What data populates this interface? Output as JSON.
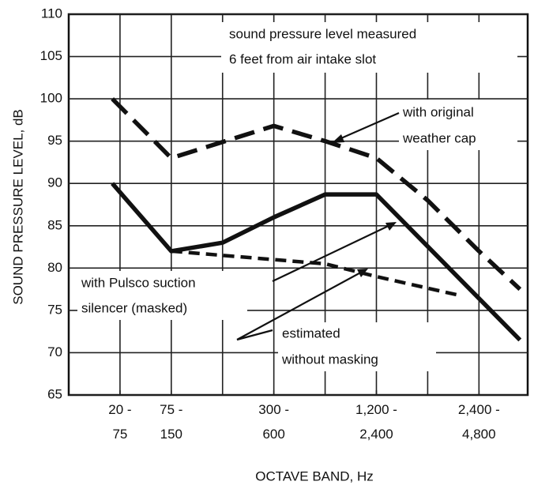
{
  "chart_data": {
    "type": "line",
    "xlabel": "OCTAVE BAND, Hz",
    "ylabel": "SOUND PRESSURE LEVEL, dB",
    "xlim": [
      0,
      8.95
    ],
    "ylim": [
      65,
      110
    ],
    "xticks": [
      {
        "value": 1,
        "label": "20 - 75"
      },
      {
        "value": 2,
        "label": "75 - 150"
      },
      {
        "value": 4,
        "label": "300 - 600"
      },
      {
        "value": 6,
        "label": "1,200 - 2,400"
      },
      {
        "value": 8,
        "label": "2,400 - 4,800"
      }
    ],
    "yticks": [
      65,
      70,
      75,
      80,
      85,
      90,
      95,
      100,
      105,
      110
    ],
    "grid": true,
    "series": [
      {
        "name": "with original weather cap",
        "color": "#111111",
        "style": "dashed",
        "x": [
          0.85,
          2,
          4,
          5,
          6,
          7,
          8,
          8.8
        ],
        "values": [
          100,
          93,
          96.8,
          95,
          93,
          88,
          82,
          77.5
        ]
      },
      {
        "name": "with Pulsco suction silencer (masked)",
        "color": "#111111",
        "style": "solid",
        "x": [
          0.85,
          2,
          3,
          4,
          5,
          6,
          8.8
        ],
        "values": [
          90,
          82,
          83,
          86,
          88.7,
          88.7,
          71.5
        ]
      },
      {
        "name": "estimated without masking",
        "color": "#111111",
        "style": "dashed",
        "x": [
          2,
          4,
          5,
          6,
          7.6
        ],
        "values": [
          82,
          81,
          80.5,
          79,
          76.8
        ]
      }
    ],
    "annotations": [
      "sound pressure level measured",
      "6 feet from air intake slot",
      "with original",
      "weather cap",
      "with Pulsco suction",
      "silencer (masked)",
      "estimated",
      "without masking"
    ]
  }
}
